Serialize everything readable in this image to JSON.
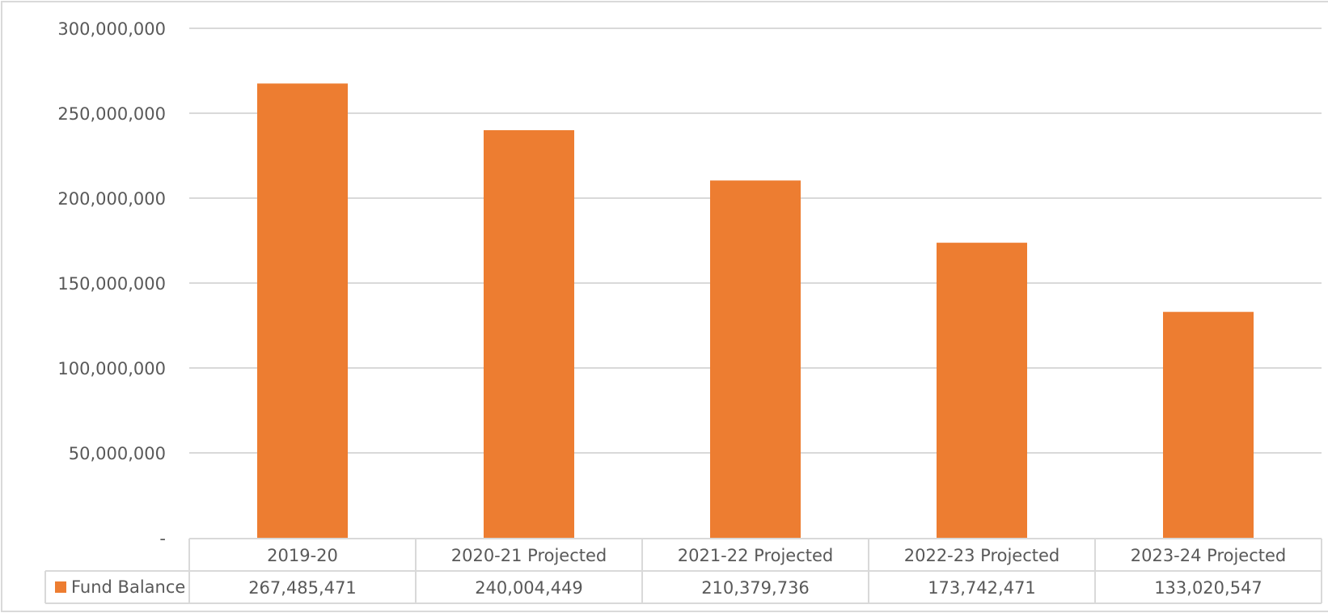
{
  "chart_data": {
    "type": "bar",
    "categories": [
      "2019-20",
      "2020-21 Projected",
      "2021-22 Projected",
      "2022-23 Projected",
      "2023-24 Projected"
    ],
    "series": [
      {
        "name": "Fund Balance",
        "values": [
          267485471,
          240004449,
          210379736,
          173742471,
          133020547
        ],
        "value_labels": [
          "267,485,471",
          "240,004,449",
          "210,379,736",
          "173,742,471",
          "133,020,547"
        ],
        "color": "#ED7D31"
      }
    ],
    "ylim": [
      0,
      300000000
    ],
    "y_ticks": [
      {
        "value": 0,
        "label": "-"
      },
      {
        "value": 50000000,
        "label": "50,000,000"
      },
      {
        "value": 100000000,
        "label": "100,000,000"
      },
      {
        "value": 150000000,
        "label": "150,000,000"
      },
      {
        "value": 200000000,
        "label": "200,000,000"
      },
      {
        "value": 250000000,
        "label": "250,000,000"
      },
      {
        "value": 300000000,
        "label": "300,000,000"
      }
    ],
    "grid": true,
    "legend": "data-table",
    "colors": {
      "grid": "#D9D9D9",
      "text": "#595959",
      "bar": "#ED7D31"
    }
  }
}
